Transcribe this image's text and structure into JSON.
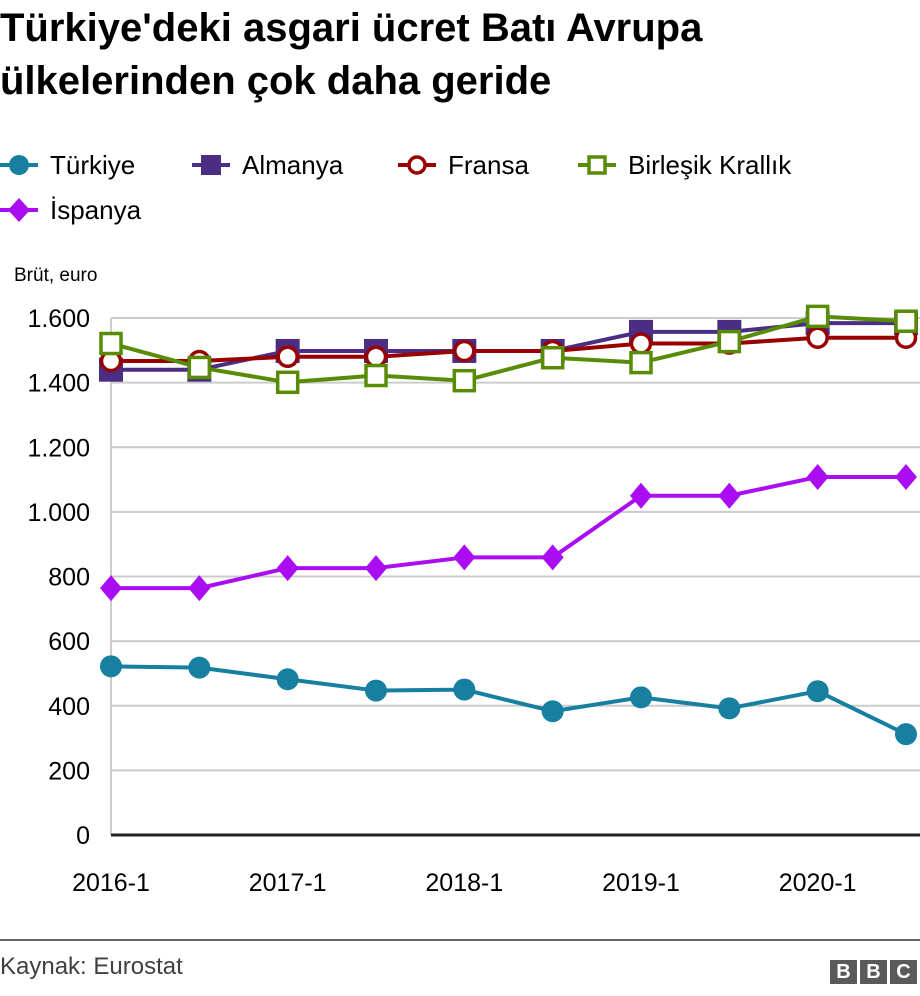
{
  "header": {
    "title": "Türkiye'deki asgari ücret Batı Avrupa ülkelerinden çok daha geride"
  },
  "footer": {
    "source": "Kaynak: Eurostat",
    "logo": [
      "B",
      "B",
      "C"
    ]
  },
  "chart_data": {
    "type": "line",
    "title": "Türkiye'deki asgari ücret Batı Avrupa ülkelerinden çok daha geride",
    "ylabel": "Brüt, euro",
    "xlabel": "",
    "ylim": [
      0,
      1600
    ],
    "yticks": [
      0,
      200,
      400,
      600,
      800,
      1000,
      1200,
      1400,
      1600
    ],
    "ytick_labels": [
      "0",
      "200",
      "400",
      "600",
      "800",
      "1.000",
      "1.200",
      "1.400",
      "1.600"
    ],
    "grid": true,
    "legend_position": "top",
    "x": [
      "2016-1",
      "2016-2",
      "2017-1",
      "2017-2",
      "2018-1",
      "2018-2",
      "2019-1",
      "2019-2",
      "2020-1",
      "2020-2"
    ],
    "xtick_labels": [
      "2016-1",
      "2017-1",
      "2018-1",
      "2019-1",
      "2020-1"
    ],
    "series": [
      {
        "name": "Türkiye",
        "color": "#1780a1",
        "marker": "circle-filled",
        "values": [
          522,
          518,
          482,
          447,
          450,
          383,
          426,
          392,
          445,
          312
        ]
      },
      {
        "name": "Almanya",
        "color": "#4b2e83",
        "marker": "square-filled",
        "values": [
          1440,
          1440,
          1498,
          1498,
          1498,
          1498,
          1557,
          1557,
          1584,
          1584
        ]
      },
      {
        "name": "Fransa",
        "color": "#990000",
        "marker": "circle-open",
        "values": [
          1467,
          1467,
          1480,
          1480,
          1498,
          1498,
          1521,
          1521,
          1539,
          1539
        ]
      },
      {
        "name": "Birleşik Krallık",
        "color": "#588c07",
        "marker": "square-open",
        "values": [
          1521,
          1447,
          1401,
          1422,
          1406,
          1477,
          1462,
          1527,
          1605,
          1590
        ]
      },
      {
        "name": "İspanya",
        "color": "#aa0df2",
        "marker": "diamond-filled",
        "values": [
          764,
          764,
          826,
          826,
          859,
          859,
          1050,
          1050,
          1108,
          1108
        ]
      }
    ]
  }
}
